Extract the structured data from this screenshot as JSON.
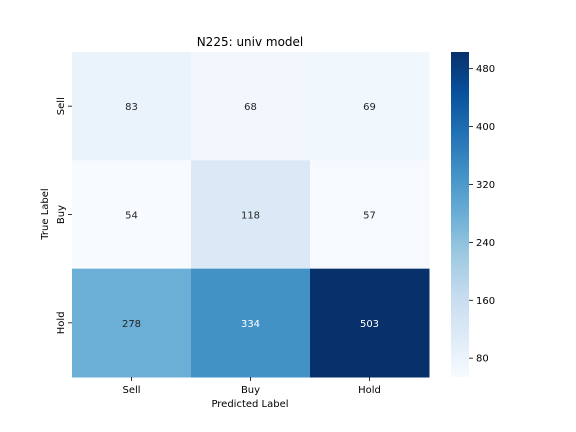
{
  "chart_data": {
    "type": "heatmap",
    "title": "N225: univ model",
    "xlabel": "Predicted Label",
    "ylabel": "True Label",
    "x_categories": [
      "Sell",
      "Buy",
      "Hold"
    ],
    "y_categories": [
      "Sell",
      "Buy",
      "Hold"
    ],
    "values": [
      [
        83,
        68,
        69
      ],
      [
        54,
        118,
        57
      ],
      [
        278,
        334,
        503
      ]
    ],
    "colormap": "Blues",
    "colorbar": {
      "vmin": 54,
      "vmax": 503,
      "ticks": [
        80,
        160,
        240,
        320,
        400,
        480
      ]
    }
  }
}
